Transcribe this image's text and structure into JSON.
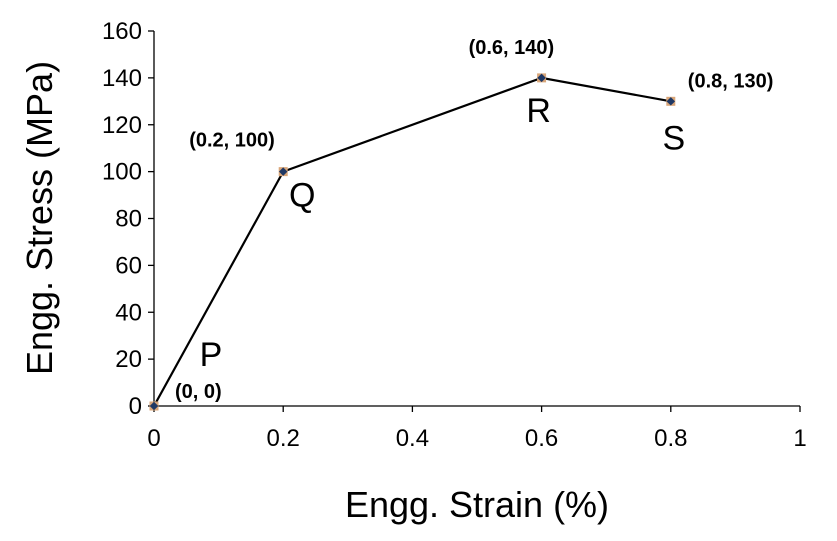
{
  "chart_data": {
    "type": "line",
    "xlabel": "Engg. Strain (%)",
    "ylabel": "Engg. Stress (MPa)",
    "xlim": [
      0,
      1
    ],
    "ylim": [
      0,
      160
    ],
    "x_ticks": [
      0,
      0.2,
      0.4,
      0.6,
      0.8,
      1
    ],
    "x_tick_labels": [
      "0",
      "0.2",
      "0.4",
      "0.6",
      "0.8",
      "1"
    ],
    "y_ticks": [
      0,
      20,
      40,
      60,
      80,
      100,
      120,
      140,
      160
    ],
    "y_tick_labels": [
      "0",
      "20",
      "40",
      "60",
      "80",
      "100",
      "120",
      "140",
      "160"
    ],
    "grid": false,
    "legend": "none",
    "series": [
      {
        "x": [
          0,
          0.2,
          0.6,
          0.8
        ],
        "y": [
          0,
          100,
          140,
          130
        ],
        "color": "#000000",
        "marker_color": "#1f3864",
        "marker_border": "#d9a679"
      }
    ],
    "point_names": [
      "P",
      "Q",
      "R",
      "S"
    ],
    "data_labels": [
      "(0, 0)",
      "(0.2, 100)",
      "(0.6, 140)",
      "(0.8, 130)"
    ]
  }
}
